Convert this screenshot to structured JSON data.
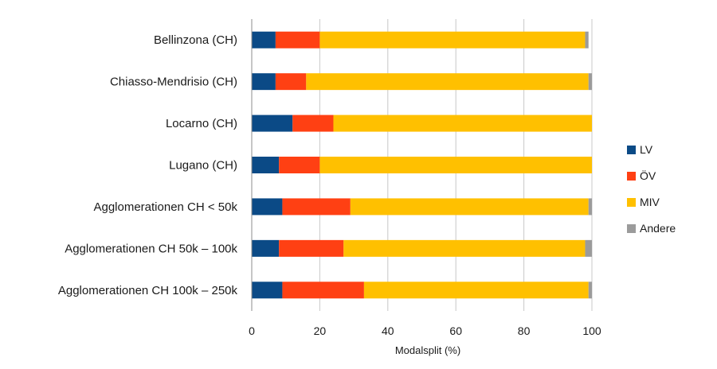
{
  "chart_data": {
    "type": "bar",
    "orientation": "horizontal",
    "stacked": true,
    "categories": [
      "Bellinzona (CH)",
      "Chiasso-Mendrisio (CH)",
      "Locarno (CH)",
      "Lugano (CH)",
      "Agglomerationen CH < 50k",
      "Agglomerationen CH 50k – 100k",
      "Agglomerationen CH 100k – 250k"
    ],
    "series": [
      {
        "name": "LV",
        "color": "#0b4a86",
        "values": [
          7,
          7,
          12,
          8,
          9,
          8,
          9
        ]
      },
      {
        "name": "ÖV",
        "color": "#ff4013",
        "values": [
          13,
          9,
          12,
          12,
          20,
          19,
          24
        ]
      },
      {
        "name": "MIV",
        "color": "#ffc000",
        "values": [
          78,
          83,
          76,
          80,
          70,
          71,
          66
        ]
      },
      {
        "name": "Andere",
        "color": "#9b9b9b",
        "values": [
          1,
          1,
          0,
          0,
          1,
          2,
          1
        ]
      }
    ],
    "xlabel": "Modalsplit (%)",
    "xlim": [
      0,
      100
    ],
    "xticks": [
      "0",
      "20",
      "40",
      "60",
      "80",
      "100"
    ],
    "grid": true,
    "legend_position": "right"
  }
}
